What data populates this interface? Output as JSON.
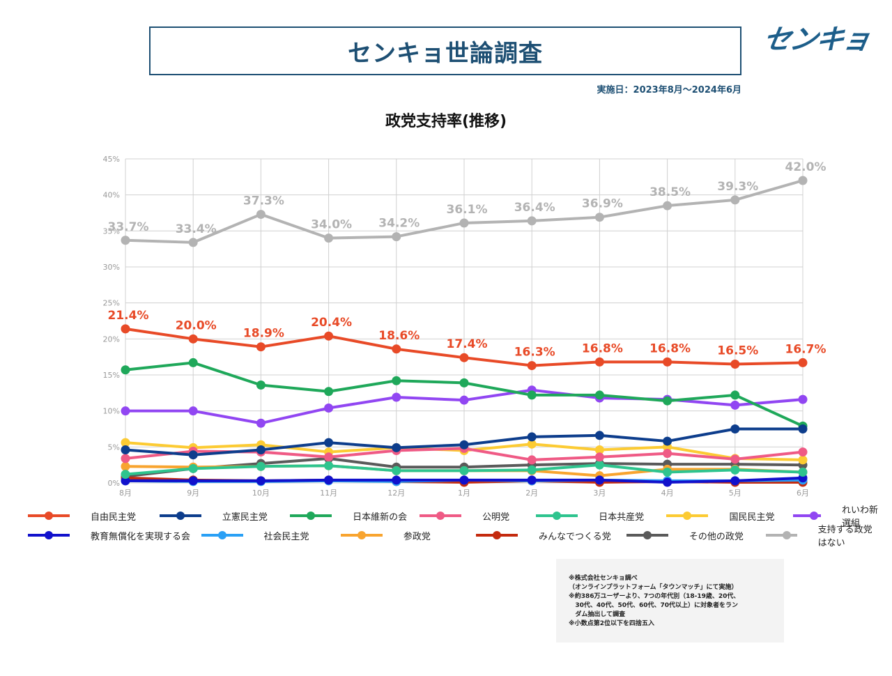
{
  "header": {
    "title": "センキョ世論調査",
    "logo_text": "センキョ",
    "survey_period": "実施日：2023年8月～2024年6月"
  },
  "colors": {
    "brand": "#1d4f73",
    "grid": "#d0d0d0",
    "tick_text": "#999999"
  },
  "chart_data": {
    "type": "line",
    "title": "政党支持率(推移)",
    "xlabel": "",
    "ylabel": "",
    "x": [
      "8月",
      "9月",
      "10月",
      "11月",
      "12月",
      "1月",
      "2月",
      "3月",
      "4月",
      "5月",
      "6月"
    ],
    "ylim": [
      0,
      45
    ],
    "yticks": [
      0,
      5,
      10,
      15,
      20,
      25,
      30,
      35,
      40,
      45
    ],
    "ytick_labels": [
      "0%",
      "5%",
      "10%",
      "15%",
      "20%",
      "25%",
      "30%",
      "35%",
      "40%",
      "45%"
    ],
    "grid": true,
    "legend_position": "bottom",
    "series": [
      {
        "name": "自由民主党",
        "color": "#e84a27",
        "values": [
          21.4,
          20.0,
          18.9,
          20.4,
          18.6,
          17.4,
          16.3,
          16.8,
          16.8,
          16.5,
          16.7
        ],
        "labels": [
          "21.4%",
          "20.0%",
          "18.9%",
          "20.4%",
          "18.6%",
          "17.4%",
          "16.3%",
          "16.8%",
          "16.8%",
          "16.5%",
          "16.7%"
        ]
      },
      {
        "name": "立憲民主党",
        "color": "#0d3d8c",
        "values": [
          4.6,
          3.9,
          4.6,
          5.6,
          4.9,
          5.3,
          6.4,
          6.6,
          5.8,
          7.5,
          7.5
        ]
      },
      {
        "name": "日本維新の会",
        "color": "#1fa85a",
        "values": [
          15.7,
          16.7,
          13.6,
          12.7,
          14.2,
          13.9,
          12.2,
          12.2,
          11.4,
          12.2,
          7.9
        ]
      },
      {
        "name": "公明党",
        "color": "#ef5a85",
        "values": [
          3.4,
          4.4,
          4.3,
          3.6,
          4.5,
          4.8,
          3.2,
          3.6,
          4.1,
          3.3,
          4.3
        ]
      },
      {
        "name": "日本共産党",
        "color": "#2ec48e",
        "values": [
          1.2,
          2.0,
          2.3,
          2.4,
          1.7,
          1.7,
          1.8,
          2.5,
          1.5,
          1.8,
          1.5
        ]
      },
      {
        "name": "国民民主党",
        "color": "#fccb33",
        "values": [
          5.6,
          4.9,
          5.3,
          4.3,
          4.9,
          4.5,
          5.4,
          4.6,
          5.0,
          3.4,
          3.2
        ]
      },
      {
        "name": "れいわ新選組",
        "color": "#9146f2",
        "values": [
          10.0,
          10.0,
          8.3,
          10.4,
          11.9,
          11.5,
          12.9,
          11.8,
          11.6,
          10.8,
          11.6
        ]
      },
      {
        "name": "教育無償化を実現する会",
        "color": "#1111cc",
        "values": [
          0.3,
          0.3,
          0.3,
          0.4,
          0.4,
          0.4,
          0.4,
          0.4,
          0.1,
          0.3,
          0.7
        ]
      },
      {
        "name": "社会民主党",
        "color": "#2aa0f5",
        "values": [
          0.3,
          0.2,
          0.2,
          0.3,
          0.2,
          0.4,
          0.3,
          0.4,
          0.3,
          0.3,
          0.4
        ]
      },
      {
        "name": "参政党",
        "color": "#f8a42f",
        "values": [
          2.3,
          2.2,
          2.3,
          2.4,
          1.7,
          1.7,
          1.7,
          1.0,
          1.9,
          1.9,
          1.5
        ]
      },
      {
        "name": "みんなでつくる党",
        "color": "#c42a0e",
        "values": [
          0.7,
          0.4,
          0.3,
          0.4,
          0.2,
          0.1,
          0.3,
          0.1,
          0.2,
          0.1,
          0.1
        ]
      },
      {
        "name": "その他の政党",
        "color": "#5a5a5a",
        "values": [
          0.9,
          2.0,
          2.7,
          3.4,
          2.2,
          2.2,
          2.5,
          2.7,
          2.6,
          2.6,
          2.5
        ]
      },
      {
        "name": "支持する政党はない",
        "color": "#b3b3b3",
        "values": [
          33.7,
          33.4,
          37.3,
          34.0,
          34.2,
          36.1,
          36.4,
          36.9,
          38.5,
          39.3,
          42.0
        ],
        "labels": [
          "33.7%",
          "33.4%",
          "37.3%",
          "34.0%",
          "34.2%",
          "36.1%",
          "36.4%",
          "36.9%",
          "38.5%",
          "39.3%",
          "42.0%"
        ]
      }
    ]
  },
  "notes": [
    "※株式会社センキョ調べ",
    "（オンラインプラットフォーム「タウンマッチ」にて実施）",
    "※約386万ユーザーより、7つの年代別（18-19歳、20代、",
    "   30代、40代、50代、60代、70代以上）に対象者をラン",
    "   ダム抽出して調査",
    "※小数点第2位以下を四捨五入"
  ]
}
